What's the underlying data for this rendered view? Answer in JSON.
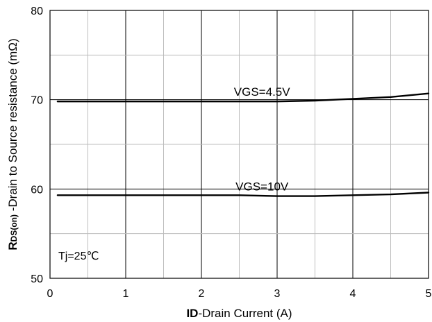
{
  "chart_data": {
    "type": "line",
    "x_label_bold": "ID",
    "x_label_rest": "-Drain Current (A)",
    "y_label_bold_main": "R",
    "y_label_bold_sub": "DS(on)",
    "y_label_rest": " -Drain to Source resistance (mΩ)",
    "xlim": [
      0,
      5
    ],
    "ylim": [
      50,
      80
    ],
    "x_ticks": [
      "0",
      "1",
      "2",
      "3",
      "4",
      "5"
    ],
    "y_ticks": [
      "50",
      "60",
      "70",
      "80"
    ],
    "grid": true,
    "condition": "Tj=25℃",
    "series": [
      {
        "name": "VGS=4.5V",
        "x": [
          0.1,
          0.5,
          1.0,
          1.5,
          2.0,
          2.5,
          3.0,
          3.5,
          4.0,
          4.5,
          5.0
        ],
        "y": [
          69.8,
          69.8,
          69.8,
          69.8,
          69.8,
          69.8,
          69.8,
          69.9,
          70.1,
          70.3,
          70.7
        ]
      },
      {
        "name": "VGS=10V",
        "x": [
          0.1,
          0.5,
          1.0,
          1.5,
          2.0,
          2.5,
          3.0,
          3.5,
          4.0,
          4.5,
          5.0
        ],
        "y": [
          59.3,
          59.3,
          59.3,
          59.3,
          59.3,
          59.3,
          59.2,
          59.2,
          59.3,
          59.4,
          59.6
        ]
      }
    ]
  }
}
